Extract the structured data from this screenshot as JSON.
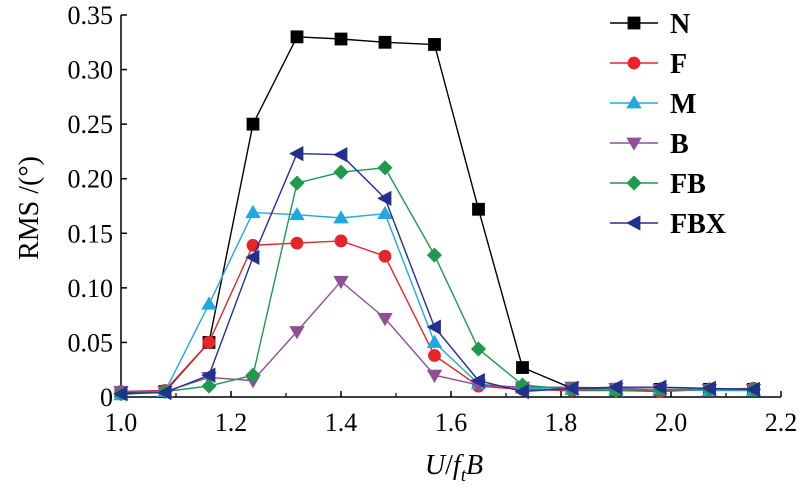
{
  "chart_data": {
    "type": "line",
    "title": "",
    "xlabel": "U/f_tB",
    "xlabel_parts": {
      "u": "U",
      "slash": "/",
      "f": "f",
      "sub": "t",
      "b": "B"
    },
    "ylabel": "RMS /(°)",
    "xlim": [
      1.0,
      2.2
    ],
    "ylim": [
      0,
      0.35
    ],
    "x_ticks": [
      "1.0",
      "1.2",
      "1.4",
      "1.6",
      "1.8",
      "2.0",
      "2.2"
    ],
    "y_ticks": [
      "0",
      "0.05",
      "0.10",
      "0.15",
      "0.20",
      "0.25",
      "0.30",
      "0.35"
    ],
    "x_tick_values": [
      1.0,
      1.2,
      1.4,
      1.6,
      1.8,
      2.0,
      2.2
    ],
    "y_tick_values": [
      0,
      0.05,
      0.1,
      0.15,
      0.2,
      0.25,
      0.3,
      0.35
    ],
    "grid": false,
    "legend_position": "top-right",
    "x": [
      1.0,
      1.08,
      1.16,
      1.24,
      1.32,
      1.4,
      1.48,
      1.57,
      1.65,
      1.73,
      1.82,
      1.9,
      1.98,
      2.07,
      2.15
    ],
    "series": [
      {
        "name": "N",
        "color": "#000000",
        "marker": "square",
        "values": [
          0.004,
          0.005,
          0.05,
          0.25,
          0.33,
          0.328,
          0.325,
          0.323,
          0.172,
          0.027,
          0.008,
          0.007,
          0.007,
          0.007,
          0.007
        ]
      },
      {
        "name": "F",
        "color": "#e8232a",
        "marker": "circle",
        "values": [
          0.005,
          0.006,
          0.05,
          0.139,
          0.141,
          0.143,
          0.129,
          0.038,
          0.01,
          0.007,
          0.006,
          0.006,
          0.005,
          0.007,
          0.008
        ]
      },
      {
        "name": "M",
        "color": "#20a8e0",
        "marker": "triangle-up",
        "values": [
          0.002,
          0.005,
          0.085,
          0.169,
          0.167,
          0.164,
          0.168,
          0.05,
          0.012,
          0.008,
          0.007,
          0.007,
          0.007,
          0.006,
          0.006
        ]
      },
      {
        "name": "B",
        "color": "#8e4f98",
        "marker": "triangle-down",
        "values": [
          0.005,
          0.005,
          0.018,
          0.015,
          0.06,
          0.106,
          0.072,
          0.02,
          0.011,
          0.009,
          0.009,
          0.008,
          0.007,
          0.007,
          0.007
        ]
      },
      {
        "name": "FB",
        "color": "#1f9a4c",
        "marker": "diamond",
        "values": [
          0.003,
          0.005,
          0.01,
          0.02,
          0.196,
          0.206,
          0.21,
          0.13,
          0.044,
          0.011,
          0.007,
          0.006,
          0.007,
          0.007,
          0.007
        ]
      },
      {
        "name": "FBX",
        "color": "#22318f",
        "marker": "triangle-left",
        "values": [
          0.003,
          0.004,
          0.02,
          0.128,
          0.223,
          0.222,
          0.182,
          0.064,
          0.015,
          0.005,
          0.008,
          0.009,
          0.009,
          0.008,
          0.007
        ]
      }
    ]
  }
}
